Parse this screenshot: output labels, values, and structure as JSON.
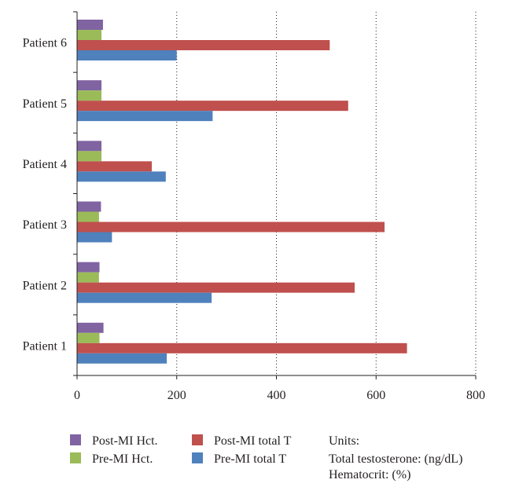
{
  "chart_data": {
    "type": "bar",
    "orientation": "horizontal",
    "categories": [
      "Patient 1",
      "Patient 2",
      "Patient 3",
      "Patient 4",
      "Patient 5",
      "Patient 6"
    ],
    "series": [
      {
        "name": "Pre-MI total T",
        "color": "#4f81bd",
        "values": [
          180,
          270,
          70,
          178,
          272,
          200
        ]
      },
      {
        "name": "Post-MI total T",
        "color": "#c0504d",
        "values": [
          662,
          557,
          617,
          150,
          544,
          507
        ]
      },
      {
        "name": "Pre-MI Hct.",
        "color": "#9bbb59",
        "values": [
          45,
          44,
          44,
          49,
          49,
          49
        ]
      },
      {
        "name": "Post-MI Hct.",
        "color": "#8064a2",
        "values": [
          53,
          45,
          48,
          49,
          49,
          52
        ]
      }
    ],
    "xlim": [
      0,
      800
    ],
    "xticks": [
      "0",
      "200",
      "400",
      "600",
      "800"
    ],
    "grid": "dotted vertical",
    "legend": {
      "position": "bottom",
      "entries": [
        "Post-MI Hct.",
        "Pre-MI Hct.",
        "Post-MI total T",
        "Pre-MI total T"
      ]
    },
    "units_note": {
      "title": "Units:",
      "lines": [
        "Total testosterone: (ng/dL)",
        "Hematocrit: (%)"
      ]
    }
  }
}
